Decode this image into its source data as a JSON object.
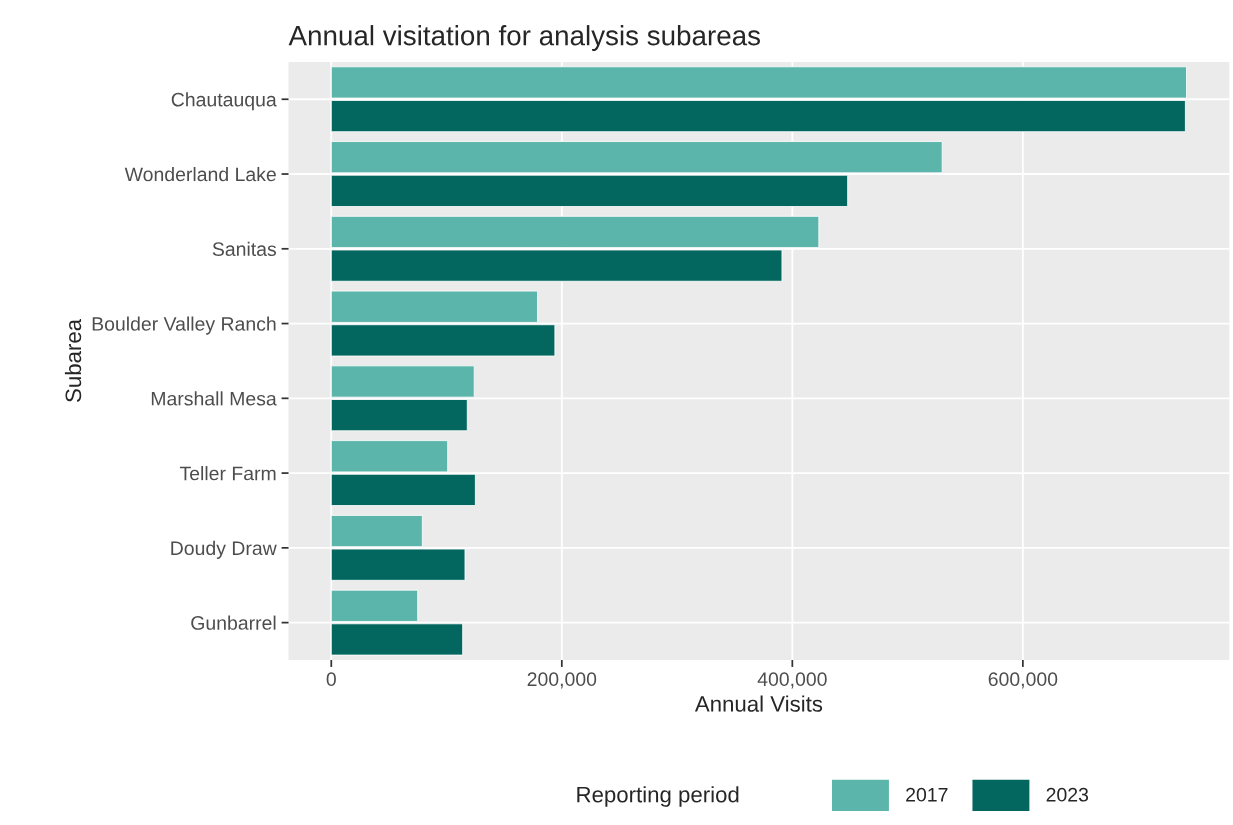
{
  "chart_data": {
    "type": "bar",
    "orientation": "horizontal",
    "title": "Annual visitation for analysis subareas",
    "xlabel": "Annual Visits",
    "ylabel": "Subarea",
    "legend_title": "Reporting period",
    "categories": [
      "Chautauqua",
      "Wonderland Lake",
      "Sanitas",
      "Boulder Valley Ranch",
      "Marshall Mesa",
      "Teller Farm",
      "Doudy Draw",
      "Gunbarrel"
    ],
    "series": [
      {
        "name": "2017",
        "color": "#5bb5ab",
        "values": [
          742000,
          530000,
          423000,
          179000,
          124000,
          101000,
          79000,
          75000
        ]
      },
      {
        "name": "2023",
        "color": "#03675f",
        "values": [
          741000,
          448000,
          391000,
          194000,
          118000,
          125000,
          116000,
          114000
        ]
      }
    ],
    "xlim": [
      -37100,
      779100
    ],
    "xticks": [
      0,
      {
        "value": 200000,
        "label": "200,000"
      },
      {
        "value": 400000,
        "label": "400,000"
      },
      {
        "value": 600000,
        "label": "600,000"
      }
    ],
    "grid": true,
    "legend": "bottom"
  }
}
